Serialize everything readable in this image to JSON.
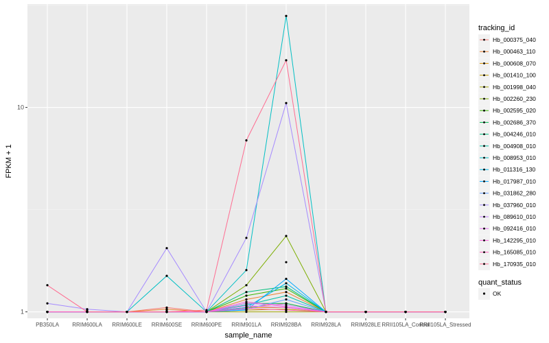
{
  "chart_data": {
    "type": "line",
    "xlabel": "sample_name",
    "ylabel": "FPKM + 1",
    "y_scale": "log10",
    "ylim": [
      0.93,
      32
    ],
    "y_ticks": [
      1,
      10
    ],
    "y_tick_labels": [
      "1",
      "10"
    ],
    "grid": true,
    "legend_position": "right",
    "categories": [
      "PB350LA",
      "RRIM600LA",
      "RRIM600LE",
      "RRIM600SE",
      "RRIM600PE",
      "RRIM901LA",
      "RRIM928BA",
      "RRIM928LA",
      "RRIM928LE",
      "RRII105LA_Control",
      "RRII105LA_Stressed"
    ],
    "legend_title": "tracking_id",
    "series": [
      {
        "name": "Hb_000375_040",
        "color": "#F8766D",
        "values": [
          1.0,
          1.0,
          1.0,
          1.05,
          1.0,
          1.05,
          1.1,
          1.0,
          1.0,
          1.0,
          1.0
        ]
      },
      {
        "name": "Hb_000463_110",
        "color": "#EA8331",
        "values": [
          1.0,
          1.0,
          1.0,
          1.03,
          1.0,
          1.15,
          1.25,
          1.0,
          1.0,
          1.0,
          1.0
        ]
      },
      {
        "name": "Hb_000608_070",
        "color": "#D89000",
        "values": [
          1.0,
          1.0,
          1.0,
          1.0,
          1.0,
          1.05,
          1.05,
          1.0,
          1.0,
          1.0,
          1.0
        ]
      },
      {
        "name": "Hb_001410_100",
        "color": "#C09B00",
        "values": [
          1.0,
          1.0,
          1.0,
          1.0,
          1.0,
          1.02,
          1.03,
          1.0,
          1.0,
          1.0,
          1.0
        ]
      },
      {
        "name": "Hb_001998_040",
        "color": "#A3A500",
        "values": [
          1.0,
          1.0,
          1.0,
          1.0,
          1.0,
          1.0,
          1.0,
          1.0,
          1.0,
          1.0,
          1.0
        ]
      },
      {
        "name": "Hb_002260_230",
        "color": "#7CAE00",
        "values": [
          1.0,
          1.0,
          1.0,
          1.0,
          1.0,
          1.35,
          2.35,
          1.0,
          1.0,
          1.0,
          1.0
        ]
      },
      {
        "name": "Hb_002595_020",
        "color": "#39B600",
        "values": [
          1.0,
          1.0,
          1.0,
          1.0,
          1.0,
          1.2,
          1.3,
          1.0,
          1.0,
          1.0,
          1.0
        ]
      },
      {
        "name": "Hb_002686_370",
        "color": "#00BB4E",
        "values": [
          1.0,
          1.0,
          1.0,
          1.0,
          1.0,
          1.1,
          1.1,
          1.0,
          1.0,
          1.0,
          1.0
        ]
      },
      {
        "name": "Hb_004246_010",
        "color": "#00BF7D",
        "values": [
          1.0,
          1.0,
          1.0,
          1.0,
          1.0,
          1.25,
          1.33,
          1.0,
          1.0,
          1.0,
          1.0
        ]
      },
      {
        "name": "Hb_004908_010",
        "color": "#00C1A3",
        "values": [
          1.0,
          1.0,
          1.0,
          1.0,
          1.0,
          1.08,
          1.2,
          1.0,
          1.0,
          1.0,
          1.0
        ]
      },
      {
        "name": "Hb_008953_010",
        "color": "#00BFC4",
        "values": [
          1.0,
          1.0,
          1.0,
          1.5,
          1.0,
          1.6,
          28.0,
          1.0,
          1.0,
          1.0,
          1.0
        ]
      },
      {
        "name": "Hb_011316_130",
        "color": "#00B8E7",
        "values": [
          1.0,
          1.0,
          1.0,
          1.0,
          1.0,
          1.05,
          1.38,
          1.0,
          1.0,
          1.0,
          1.0
        ]
      },
      {
        "name": "Hb_017987_010",
        "color": "#00A9FF",
        "values": [
          1.0,
          1.0,
          1.0,
          1.0,
          1.0,
          1.02,
          1.45,
          1.0,
          1.0,
          1.0,
          1.0
        ]
      },
      {
        "name": "Hb_031862_280",
        "color": "#619CFF",
        "values": [
          1.0,
          1.0,
          1.0,
          1.0,
          1.0,
          1.03,
          1.15,
          1.0,
          1.0,
          1.0,
          1.0
        ]
      },
      {
        "name": "Hb_037960_010",
        "color": "#A58AFF",
        "values": [
          1.1,
          1.03,
          1.0,
          2.05,
          1.0,
          2.3,
          10.5,
          1.0,
          1.0,
          1.0,
          1.0
        ]
      },
      {
        "name": "Hb_089610_010",
        "color": "#C77CFF",
        "values": [
          1.0,
          1.0,
          1.0,
          1.0,
          1.0,
          1.1,
          1.08,
          1.0,
          1.0,
          1.0,
          1.0
        ]
      },
      {
        "name": "Hb_092416_010",
        "color": "#E76BF3",
        "values": [
          1.0,
          1.0,
          1.0,
          1.0,
          1.0,
          1.07,
          1.05,
          1.0,
          1.0,
          1.0,
          1.0
        ]
      },
      {
        "name": "Hb_142295_010",
        "color": "#FA62DB",
        "values": [
          1.0,
          1.0,
          1.0,
          1.0,
          1.0,
          1.12,
          1.06,
          1.0,
          1.0,
          1.0,
          1.0
        ]
      },
      {
        "name": "Hb_165085_010",
        "color": "#FF62BC",
        "values": [
          1.0,
          1.0,
          1.0,
          1.0,
          1.0,
          1.04,
          1.02,
          1.0,
          1.0,
          1.0,
          1.0
        ]
      },
      {
        "name": "Hb_170935_010",
        "color": "#FF6C91",
        "values": [
          1.35,
          1.0,
          1.0,
          1.0,
          1.02,
          6.9,
          17.0,
          1.0,
          1.0,
          1.0,
          1.0
        ]
      }
    ],
    "extra_points": [
      {
        "x": "RRIM600LA",
        "y": 1.02
      },
      {
        "x": "RRIM600SE",
        "y": 1.02
      },
      {
        "x": "RRIM928BA",
        "y": 1.75
      },
      {
        "x": "RRIM928BA",
        "y": 1.02
      }
    ],
    "point_color": "#000000",
    "shape_legend": {
      "title": "quant_status",
      "items": [
        {
          "label": "OK"
        }
      ]
    }
  }
}
